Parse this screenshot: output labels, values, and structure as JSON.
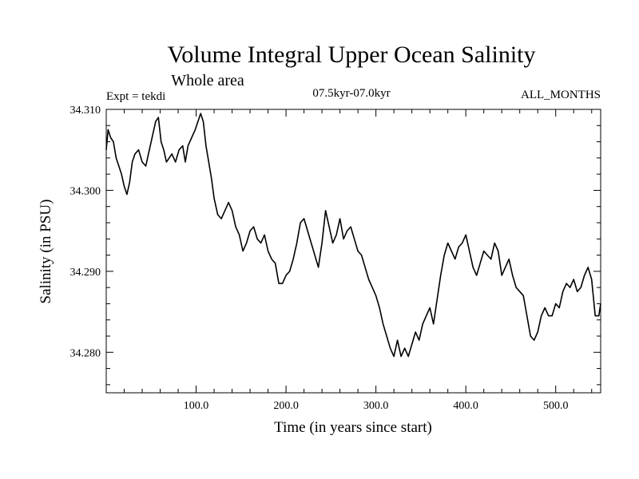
{
  "chart_data": {
    "type": "line",
    "title": "Volume Integral Upper Ocean Salinity",
    "subtitle": "Whole area",
    "experiment": "Expt = tekdi",
    "period": "07.5kyr-07.0kyr",
    "months": "ALL_MONTHS",
    "xlabel": "Time (in years since start)",
    "ylabel": "Salinity (in PSU)",
    "xlim": [
      0,
      550
    ],
    "ylim": [
      34.275,
      34.31
    ],
    "x_ticks": [
      100,
      200,
      300,
      400,
      500
    ],
    "x_tick_labels": [
      "100.0",
      "200.0",
      "300.0",
      "400.0",
      "500.0"
    ],
    "y_ticks": [
      34.28,
      34.29,
      34.3,
      34.31
    ],
    "y_tick_labels": [
      "34.280",
      "34.290",
      "34.300",
      "34.310"
    ],
    "series": [
      {
        "name": "salinity",
        "x": [
          0,
          2,
          5,
          8,
          11,
          14,
          17,
          20,
          23,
          26,
          29,
          32,
          36,
          40,
          44,
          48,
          52,
          55,
          58,
          61,
          64,
          67,
          70,
          73,
          77,
          81,
          85,
          88,
          91,
          95,
          99,
          102,
          105,
          108,
          111,
          114,
          117,
          120,
          124,
          128,
          132,
          136,
          140,
          144,
          148,
          152,
          156,
          160,
          164,
          168,
          172,
          176,
          180,
          184,
          188,
          192,
          196,
          200,
          204,
          208,
          212,
          216,
          220,
          224,
          228,
          232,
          236,
          240,
          244,
          248,
          252,
          256,
          260,
          264,
          268,
          272,
          276,
          280,
          284,
          288,
          292,
          296,
          300,
          304,
          308,
          312,
          316,
          320,
          324,
          328,
          332,
          336,
          340,
          344,
          348,
          352,
          356,
          360,
          364,
          368,
          372,
          376,
          380,
          384,
          388,
          392,
          396,
          400,
          404,
          408,
          412,
          416,
          420,
          424,
          428,
          432,
          436,
          440,
          444,
          448,
          452,
          456,
          460,
          464,
          468,
          472,
          476,
          480,
          484,
          488,
          492,
          496,
          500,
          504,
          508,
          512,
          516,
          520,
          524,
          528,
          532,
          536,
          540,
          544,
          548,
          550
        ],
        "values": [
          34.305,
          34.3075,
          34.3065,
          34.306,
          34.304,
          34.303,
          34.302,
          34.3005,
          34.2995,
          34.301,
          34.3035,
          34.3045,
          34.305,
          34.3035,
          34.303,
          34.305,
          34.307,
          34.3085,
          34.309,
          34.306,
          34.305,
          34.3035,
          34.304,
          34.3045,
          34.3035,
          34.305,
          34.3055,
          34.3035,
          34.3055,
          34.3065,
          34.3075,
          34.3085,
          34.3095,
          34.3085,
          34.3055,
          34.3035,
          34.3015,
          34.299,
          34.297,
          34.2965,
          34.2975,
          34.2985,
          34.2975,
          34.2955,
          34.2945,
          34.2925,
          34.2935,
          34.295,
          34.2955,
          34.294,
          34.2935,
          34.2945,
          34.2925,
          34.2915,
          34.291,
          34.2885,
          34.2885,
          34.2895,
          34.29,
          34.2915,
          34.2935,
          34.296,
          34.2965,
          34.295,
          34.2935,
          34.292,
          34.2905,
          34.2935,
          34.2975,
          34.2955,
          34.2935,
          34.2945,
          34.2965,
          34.294,
          34.295,
          34.2955,
          34.294,
          34.2925,
          34.292,
          34.2905,
          34.289,
          34.288,
          34.287,
          34.2855,
          34.2835,
          34.282,
          34.2805,
          34.2795,
          34.2815,
          34.2795,
          34.2805,
          34.2795,
          34.281,
          34.2825,
          34.2815,
          34.2835,
          34.2845,
          34.2855,
          34.2835,
          34.2865,
          34.2895,
          34.292,
          34.2935,
          34.2925,
          34.2915,
          34.293,
          34.2935,
          34.2945,
          34.2925,
          34.2905,
          34.2895,
          34.291,
          34.2925,
          34.292,
          34.2915,
          34.2935,
          34.2925,
          34.2895,
          34.2905,
          34.2915,
          34.2895,
          34.288,
          34.2875,
          34.287,
          34.2845,
          34.282,
          34.2815,
          34.2825,
          34.2845,
          34.2855,
          34.2845,
          34.2845,
          34.286,
          34.2855,
          34.2875,
          34.2885,
          34.288,
          34.289,
          34.2875,
          34.288,
          34.2895,
          34.2905,
          34.289,
          34.2845,
          34.2845,
          34.286
        ]
      }
    ]
  }
}
